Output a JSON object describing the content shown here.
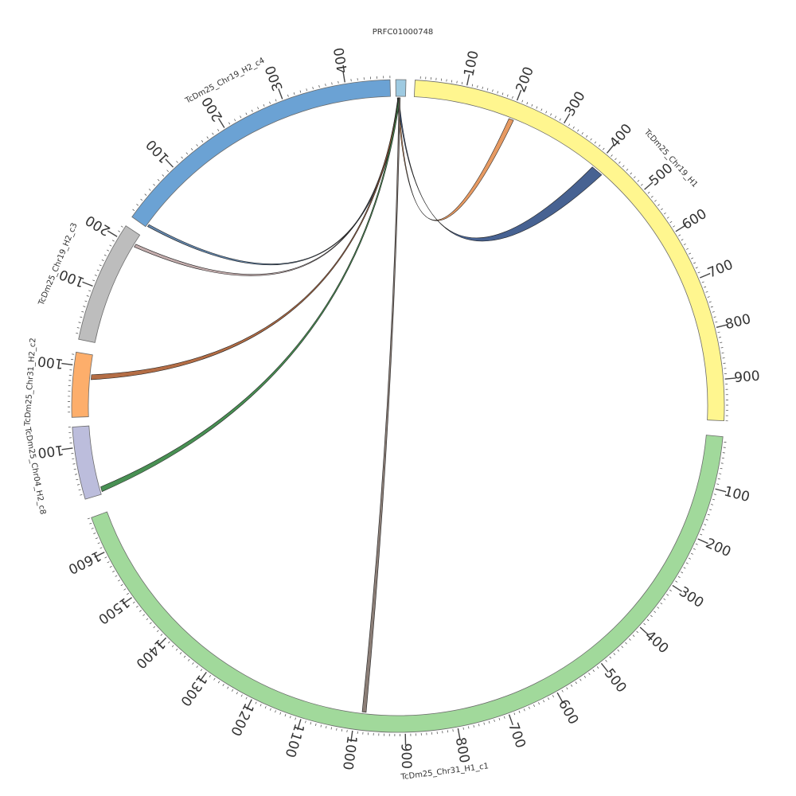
{
  "segments": [
    {
      "id": "PRFC01000748",
      "label": "PRFC01000748",
      "length": 10,
      "color": "#9ecae1",
      "tick_labels": []
    },
    {
      "id": "H1",
      "label": "TcDm25_Chr19_H1",
      "length": 980,
      "color": "#fff68f",
      "tick_labels": [
        "100",
        "200",
        "300",
        "400",
        "500",
        "600",
        "700",
        "800",
        "900"
      ]
    },
    {
      "id": "c1",
      "label": "TcDm25_Chr31_H1_c1",
      "length": 1670,
      "color": "#a1d99b",
      "tick_labels": [
        "100",
        "200",
        "300",
        "400",
        "500",
        "600",
        "700",
        "800",
        "900",
        "1000",
        "1100",
        "1200",
        "1300",
        "1400",
        "1500",
        "1600"
      ]
    },
    {
      "id": "c8",
      "label": "TcDm25_Chr04_H2_c8",
      "length": 140,
      "color": "#bcbddc",
      "tick_labels": [
        "100"
      ]
    },
    {
      "id": "c2",
      "label": "TcDm25_Chr31_H2_c2",
      "length": 125,
      "color": "#fdae6b",
      "tick_labels": [
        "100"
      ]
    },
    {
      "id": "c3",
      "label": "TcDm25_Chr19_H2_c3",
      "length": 225,
      "color": "#bdbdbd",
      "tick_labels": [
        "100",
        "200"
      ]
    },
    {
      "id": "c4",
      "label": "TcDm25_Chr19_H2_c4",
      "length": 470,
      "color": "#6ba2d4",
      "tick_labels": [
        "100",
        "200",
        "300",
        "400"
      ]
    }
  ],
  "links": [
    {
      "from": "PRFC01000748",
      "to": "H1",
      "to_start": 198,
      "to_end": 208,
      "color": "#e6955a"
    },
    {
      "from": "PRFC01000748",
      "to": "H1",
      "to_start": 395,
      "to_end": 420,
      "color": "#3d5a8c"
    },
    {
      "from": "PRFC01000748",
      "to": "c3",
      "to_start": 200,
      "to_end": 206,
      "color": "#c2aaaa"
    },
    {
      "from": "PRFC01000748",
      "to": "c4",
      "to_start": 2,
      "to_end": 6,
      "color": "#5b7fa8"
    },
    {
      "from": "PRFC01000748",
      "to": "c2",
      "to_start": 75,
      "to_end": 85,
      "color": "#b0653b"
    },
    {
      "from": "PRFC01000748",
      "to": "c8",
      "to_start": 5,
      "to_end": 15,
      "color": "#3e8a4a"
    },
    {
      "from": "PRFC01000748",
      "to": "c1",
      "to_start": 978,
      "to_end": 986,
      "color": "#857770"
    }
  ]
}
